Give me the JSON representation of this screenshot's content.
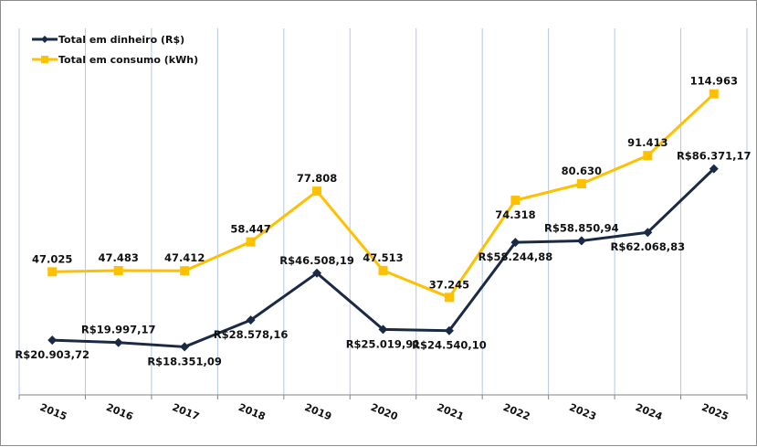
{
  "chart_data": {
    "type": "line",
    "title": "",
    "xlabel": "",
    "ylabel": "",
    "categories": [
      "2015",
      "2016",
      "2017",
      "2018",
      "2019",
      "2020",
      "2021",
      "2022",
      "2023",
      "2024",
      "2025"
    ],
    "ylim": [
      0,
      140
    ],
    "grid": "vertical",
    "legend_position": "top-left",
    "series": [
      {
        "name": "Total em dinheiro (R$)",
        "color": "#1b2a44",
        "marker": "diamond",
        "values": [
          20903.72,
          19997.17,
          18351.09,
          28578.16,
          46508.19,
          25019.91,
          24540.1,
          58244.88,
          58850.94,
          62068.83,
          86371.17
        ],
        "labels": [
          "R$20.903,72",
          "R$19.997,17",
          "R$18.351,09",
          "R$28.578,16",
          "R$46.508,19",
          "R$25.019,91",
          "R$24.540,10",
          "R$58.244,88",
          "R$58.850,94",
          "R$62.068,83",
          "R$86.371,17"
        ],
        "label_pos": [
          "below",
          "above",
          "below",
          "below",
          "above",
          "below",
          "below",
          "below",
          "above",
          "below",
          "above"
        ]
      },
      {
        "name": "Total em consumo (kWh)",
        "color": "#ffc000",
        "marker": "square",
        "values": [
          47025,
          47483,
          47412,
          58447,
          77808,
          47513,
          37245,
          74318,
          80630,
          91413,
          114963
        ],
        "labels": [
          "47.025",
          "47.483",
          "47.412",
          "58.447",
          "77.808",
          "47.513",
          "37.245",
          "74.318",
          "80.630",
          "91.413",
          "114.963"
        ],
        "label_pos": [
          "above",
          "above",
          "above",
          "above",
          "above",
          "above",
          "above",
          "below",
          "above",
          "above",
          "above"
        ]
      }
    ]
  }
}
